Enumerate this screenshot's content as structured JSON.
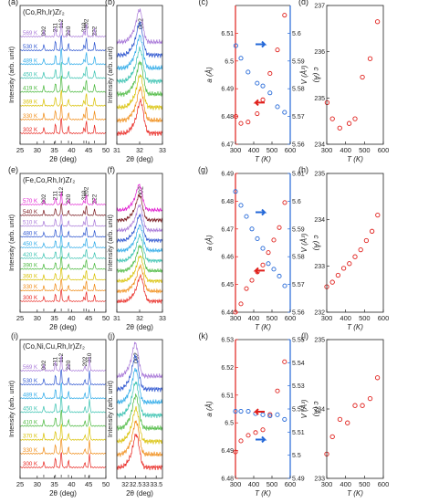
{
  "figure": {
    "rows": [
      {
        "xrd": {
          "label": "(a)",
          "compound": "(Co,Rh,Ir)Zr₂",
          "xlim": [
            25,
            50
          ],
          "xticks": [
            25,
            30,
            35,
            40,
            45,
            50
          ],
          "xlabel": "2θ (deg)",
          "ylabel": "Intensity (arb. unit)",
          "peaks": [
            {
              "hkl": "002",
              "x": 31.9
            },
            {
              "hkl": "211",
              "x": 35.3
            },
            {
              "hkl": "112",
              "x": 37.0
            },
            {
              "hkl": "220",
              "x": 39.1
            },
            {
              "hkl": "310",
              "x": 43.6
            },
            {
              "hkl": "202",
              "x": 44.3
            },
            {
              "hkl": "222",
              "x": 46.7
            }
          ],
          "temps": [
            "302 K",
            "330 K",
            "369 K",
            "419 K",
            "450 K",
            "489 K",
            "530 K",
            "569 K"
          ],
          "colors": [
            "#e8221c",
            "#f08a12",
            "#d8c000",
            "#48b83c",
            "#38c2b0",
            "#2aa9e8",
            "#2e56d0",
            "#a878d8"
          ],
          "reference_color": "#333333"
        },
        "zoom": {
          "label": "(b)",
          "xlim": [
            31.0,
            33.0
          ],
          "xticks": [
            31.0,
            32.0,
            33.0
          ],
          "xlabel": "2θ (deg)",
          "ylabel": "Intensity (arb. unit)",
          "peak_label": "002",
          "center": 32.05
        },
        "lattice": {
          "label": "(c)",
          "xlim": [
            300,
            600
          ],
          "xticks": [
            300,
            400,
            500,
            600
          ],
          "xlabel": "T (K)",
          "a_label": "a (Å)",
          "a_lim": [
            6.47,
            6.52
          ],
          "a_ticks": [
            6.47,
            6.48,
            6.49,
            6.5,
            6.51
          ],
          "c_label": "c (Å)",
          "c_lim": [
            5.56,
            5.61
          ],
          "c_ticks": [
            5.56,
            5.57,
            5.58,
            5.59,
            5.6
          ],
          "T": [
            302,
            330,
            369,
            419,
            450,
            489,
            530,
            569
          ],
          "a": [
            6.48,
            6.4775,
            6.478,
            6.481,
            6.486,
            6.4955,
            6.504,
            6.5165
          ],
          "c": [
            5.5955,
            5.591,
            5.586,
            5.582,
            5.581,
            5.5785,
            5.5735,
            5.5715
          ],
          "a_color": "#e0201c",
          "c_color": "#2468d8"
        },
        "volume": {
          "label": "(d)",
          "xlim": [
            300,
            600
          ],
          "xticks": [
            300,
            400,
            500,
            600
          ],
          "xlabel": "T (K)",
          "ylabel": "V (Å³)",
          "ylim": [
            234,
            237
          ],
          "yticks": [
            234,
            235,
            236,
            237
          ],
          "T": [
            302,
            330,
            369,
            419,
            450,
            489,
            530,
            569
          ],
          "V": [
            234.9,
            234.55,
            234.35,
            234.45,
            234.55,
            235.45,
            235.85,
            236.65
          ]
        }
      },
      {
        "xrd": {
          "label": "(e)",
          "compound": "(Fe,Co,Rh,Ir)Zr₂",
          "xlim": [
            25,
            50
          ],
          "xticks": [
            25,
            30,
            35,
            40,
            45,
            50
          ],
          "xlabel": "2θ (deg)",
          "ylabel": "Intensity (arb. unit)",
          "peaks": [
            {
              "hkl": "002",
              "x": 31.9
            },
            {
              "hkl": "211",
              "x": 35.3
            },
            {
              "hkl": "112",
              "x": 37.0
            },
            {
              "hkl": "220",
              "x": 39.1
            },
            {
              "hkl": "310",
              "x": 43.6
            },
            {
              "hkl": "202",
              "x": 44.3
            },
            {
              "hkl": "222",
              "x": 46.7
            }
          ],
          "temps": [
            "300 K",
            "330 K",
            "360 K",
            "390 K",
            "420 K",
            "450 K",
            "480 K",
            "510 K",
            "540 K",
            "570 K"
          ],
          "colors": [
            "#e8221c",
            "#f08a12",
            "#d8c000",
            "#48b83c",
            "#38c2b0",
            "#2aa9e8",
            "#2e56d0",
            "#a878d8",
            "#7a1a20",
            "#e020d0"
          ],
          "reference_color": "#333333"
        },
        "zoom": {
          "label": "(f)",
          "xlim": [
            31.0,
            33.0
          ],
          "xticks": [
            31.0,
            32.0,
            33.0
          ],
          "xlabel": "2θ (deg)",
          "ylabel": "Intensity (arb. unit)",
          "peak_label": "002",
          "center": 32.05
        },
        "lattice": {
          "label": "(g)",
          "xlim": [
            300,
            600
          ],
          "xticks": [
            300,
            400,
            500,
            600
          ],
          "xlabel": "T (K)",
          "a_label": "a (Å)",
          "a_lim": [
            6.44,
            6.49
          ],
          "a_ticks": [
            6.44,
            6.45,
            6.46,
            6.47,
            6.48,
            6.49
          ],
          "c_label": "c (Å)",
          "c_lim": [
            5.56,
            5.61
          ],
          "c_ticks": [
            5.56,
            5.57,
            5.58,
            5.59,
            5.6,
            5.61
          ],
          "T": [
            300,
            330,
            360,
            390,
            420,
            450,
            480,
            510,
            540,
            570
          ],
          "a": [
            6.44,
            6.443,
            6.4485,
            6.4515,
            6.4545,
            6.457,
            6.4615,
            6.466,
            6.4705,
            6.4795
          ],
          "c": [
            5.6035,
            5.5985,
            5.5945,
            5.59,
            5.5865,
            5.583,
            5.5775,
            5.5755,
            5.573,
            5.5695
          ],
          "a_color": "#e0201c",
          "c_color": "#2468d8"
        },
        "volume": {
          "label": "(h)",
          "xlim": [
            300,
            600
          ],
          "xticks": [
            300,
            400,
            500,
            600
          ],
          "xlabel": "T (K)",
          "ylabel": "V (Å³)",
          "ylim": [
            232,
            235
          ],
          "yticks": [
            232,
            233,
            234,
            235
          ],
          "T": [
            300,
            330,
            360,
            390,
            420,
            450,
            480,
            510,
            540,
            570
          ],
          "V": [
            232.55,
            232.65,
            232.8,
            232.95,
            233.05,
            233.2,
            233.35,
            233.55,
            233.75,
            234.1
          ]
        }
      },
      {
        "xrd": {
          "label": "(i)",
          "compound": "(Co,Ni,Cu,Rh,Ir)Zr₂",
          "xlim": [
            25,
            50
          ],
          "xticks": [
            25,
            30,
            35,
            40,
            45,
            50
          ],
          "xlabel": "2θ (deg)",
          "ylabel": "Intensity (arb. unit)",
          "peaks": [
            {
              "hkl": "002",
              "x": 31.9
            },
            {
              "hkl": "211",
              "x": 35.3
            },
            {
              "hkl": "112",
              "x": 37.0
            },
            {
              "hkl": "220",
              "x": 39.1
            },
            {
              "hkl": "202",
              "x": 43.9
            },
            {
              "hkl": "310",
              "x": 45.2
            }
          ],
          "temps": [
            "300 K",
            "330 K",
            "370 K",
            "410 K",
            "450 K",
            "489 K",
            "530 K",
            "569 K"
          ],
          "colors": [
            "#e8221c",
            "#f08a12",
            "#d8c000",
            "#48b83c",
            "#38c2b0",
            "#2aa9e8",
            "#2e56d0",
            "#a878d8"
          ],
          "reference_color": "#333333"
        },
        "zoom": {
          "label": "(j)",
          "xlim": [
            31.6,
            33.8
          ],
          "xticks": [
            32.0,
            32.5,
            33.0,
            33.5
          ],
          "xlabel": "2θ (deg)",
          "ylabel": "Intensity (arb. unit)",
          "peak_label": "002",
          "center": 32.55
        },
        "lattice": {
          "label": "(k)",
          "xlim": [
            300,
            600
          ],
          "xticks": [
            300,
            400,
            500,
            600
          ],
          "xlabel": "T (K)",
          "a_label": "a (Å)",
          "a_lim": [
            6.48,
            6.53
          ],
          "a_ticks": [
            6.48,
            6.49,
            6.5,
            6.51,
            6.52,
            6.53
          ],
          "c_label": "c (Å)",
          "c_lim": [
            5.49,
            5.55
          ],
          "c_ticks": [
            5.49,
            5.5,
            5.51,
            5.52,
            5.53,
            5.54,
            5.55
          ],
          "T": [
            300,
            330,
            370,
            410,
            450,
            489,
            530,
            569
          ],
          "a": [
            6.4895,
            6.4935,
            6.4955,
            6.4965,
            6.4975,
            6.503,
            6.5115,
            6.522
          ],
          "c": [
            5.519,
            5.519,
            5.519,
            5.518,
            5.5175,
            5.517,
            5.5175,
            5.5155
          ],
          "a_color": "#e0201c",
          "c_color": "#2468d8"
        },
        "volume": {
          "label": "(l)",
          "xlim": [
            300,
            600
          ],
          "xticks": [
            300,
            400,
            500,
            600
          ],
          "xlabel": "T (K)",
          "ylabel": "V (Å³)",
          "ylim": [
            233,
            235
          ],
          "yticks": [
            233,
            234,
            235
          ],
          "T": [
            300,
            330,
            370,
            410,
            450,
            489,
            530,
            569
          ],
          "V": [
            233.35,
            233.6,
            233.85,
            233.8,
            234.05,
            234.05,
            234.15,
            234.45
          ]
        }
      }
    ]
  },
  "chart_data": [
    {
      "type": "scatter",
      "title": "(c)",
      "xlabel": "T (K)",
      "series": [
        {
          "name": "a (Å)",
          "x": [
            302,
            330,
            369,
            419,
            450,
            489,
            530,
            569
          ],
          "y": [
            6.48,
            6.4775,
            6.478,
            6.481,
            6.486,
            6.4955,
            6.504,
            6.5165
          ]
        },
        {
          "name": "c (Å)",
          "x": [
            302,
            330,
            369,
            419,
            450,
            489,
            530,
            569
          ],
          "y": [
            5.5955,
            5.591,
            5.586,
            5.582,
            5.581,
            5.5785,
            5.5735,
            5.5715
          ]
        }
      ]
    },
    {
      "type": "scatter",
      "title": "(d)",
      "xlabel": "T (K)",
      "ylabel": "V (Å³)",
      "x": [
        302,
        330,
        369,
        419,
        450,
        489,
        530,
        569
      ],
      "values": [
        234.9,
        234.55,
        234.35,
        234.45,
        234.55,
        235.45,
        235.85,
        236.65
      ]
    },
    {
      "type": "scatter",
      "title": "(g)",
      "xlabel": "T (K)",
      "series": [
        {
          "name": "a (Å)",
          "x": [
            300,
            330,
            360,
            390,
            420,
            450,
            480,
            510,
            540,
            570
          ],
          "y": [
            6.44,
            6.443,
            6.4485,
            6.4515,
            6.4545,
            6.457,
            6.4615,
            6.466,
            6.4705,
            6.4795
          ]
        },
        {
          "name": "c (Å)",
          "x": [
            300,
            330,
            360,
            390,
            420,
            450,
            480,
            510,
            540,
            570
          ],
          "y": [
            5.6035,
            5.5985,
            5.5945,
            5.59,
            5.5865,
            5.583,
            5.5775,
            5.5755,
            5.573,
            5.5695
          ]
        }
      ]
    },
    {
      "type": "scatter",
      "title": "(h)",
      "xlabel": "T (K)",
      "ylabel": "V (Å³)",
      "x": [
        300,
        330,
        360,
        390,
        420,
        450,
        480,
        510,
        540,
        570
      ],
      "values": [
        232.55,
        232.65,
        232.8,
        232.95,
        233.05,
        233.2,
        233.35,
        233.55,
        233.75,
        234.1
      ]
    },
    {
      "type": "scatter",
      "title": "(k)",
      "xlabel": "T (K)",
      "series": [
        {
          "name": "a (Å)",
          "x": [
            300,
            330,
            370,
            410,
            450,
            489,
            530,
            569
          ],
          "y": [
            6.4895,
            6.4935,
            6.4955,
            6.4965,
            6.4975,
            6.503,
            6.5115,
            6.522
          ]
        },
        {
          "name": "c (Å)",
          "x": [
            300,
            330,
            370,
            410,
            450,
            489,
            530,
            569
          ],
          "y": [
            5.519,
            5.519,
            5.519,
            5.518,
            5.5175,
            5.517,
            5.5175,
            5.5155
          ]
        }
      ]
    },
    {
      "type": "scatter",
      "title": "(l)",
      "xlabel": "T (K)",
      "ylabel": "V (Å³)",
      "x": [
        300,
        330,
        370,
        410,
        450,
        489,
        530,
        569
      ],
      "values": [
        233.35,
        233.6,
        233.85,
        233.8,
        234.05,
        234.05,
        234.15,
        234.45
      ]
    }
  ]
}
